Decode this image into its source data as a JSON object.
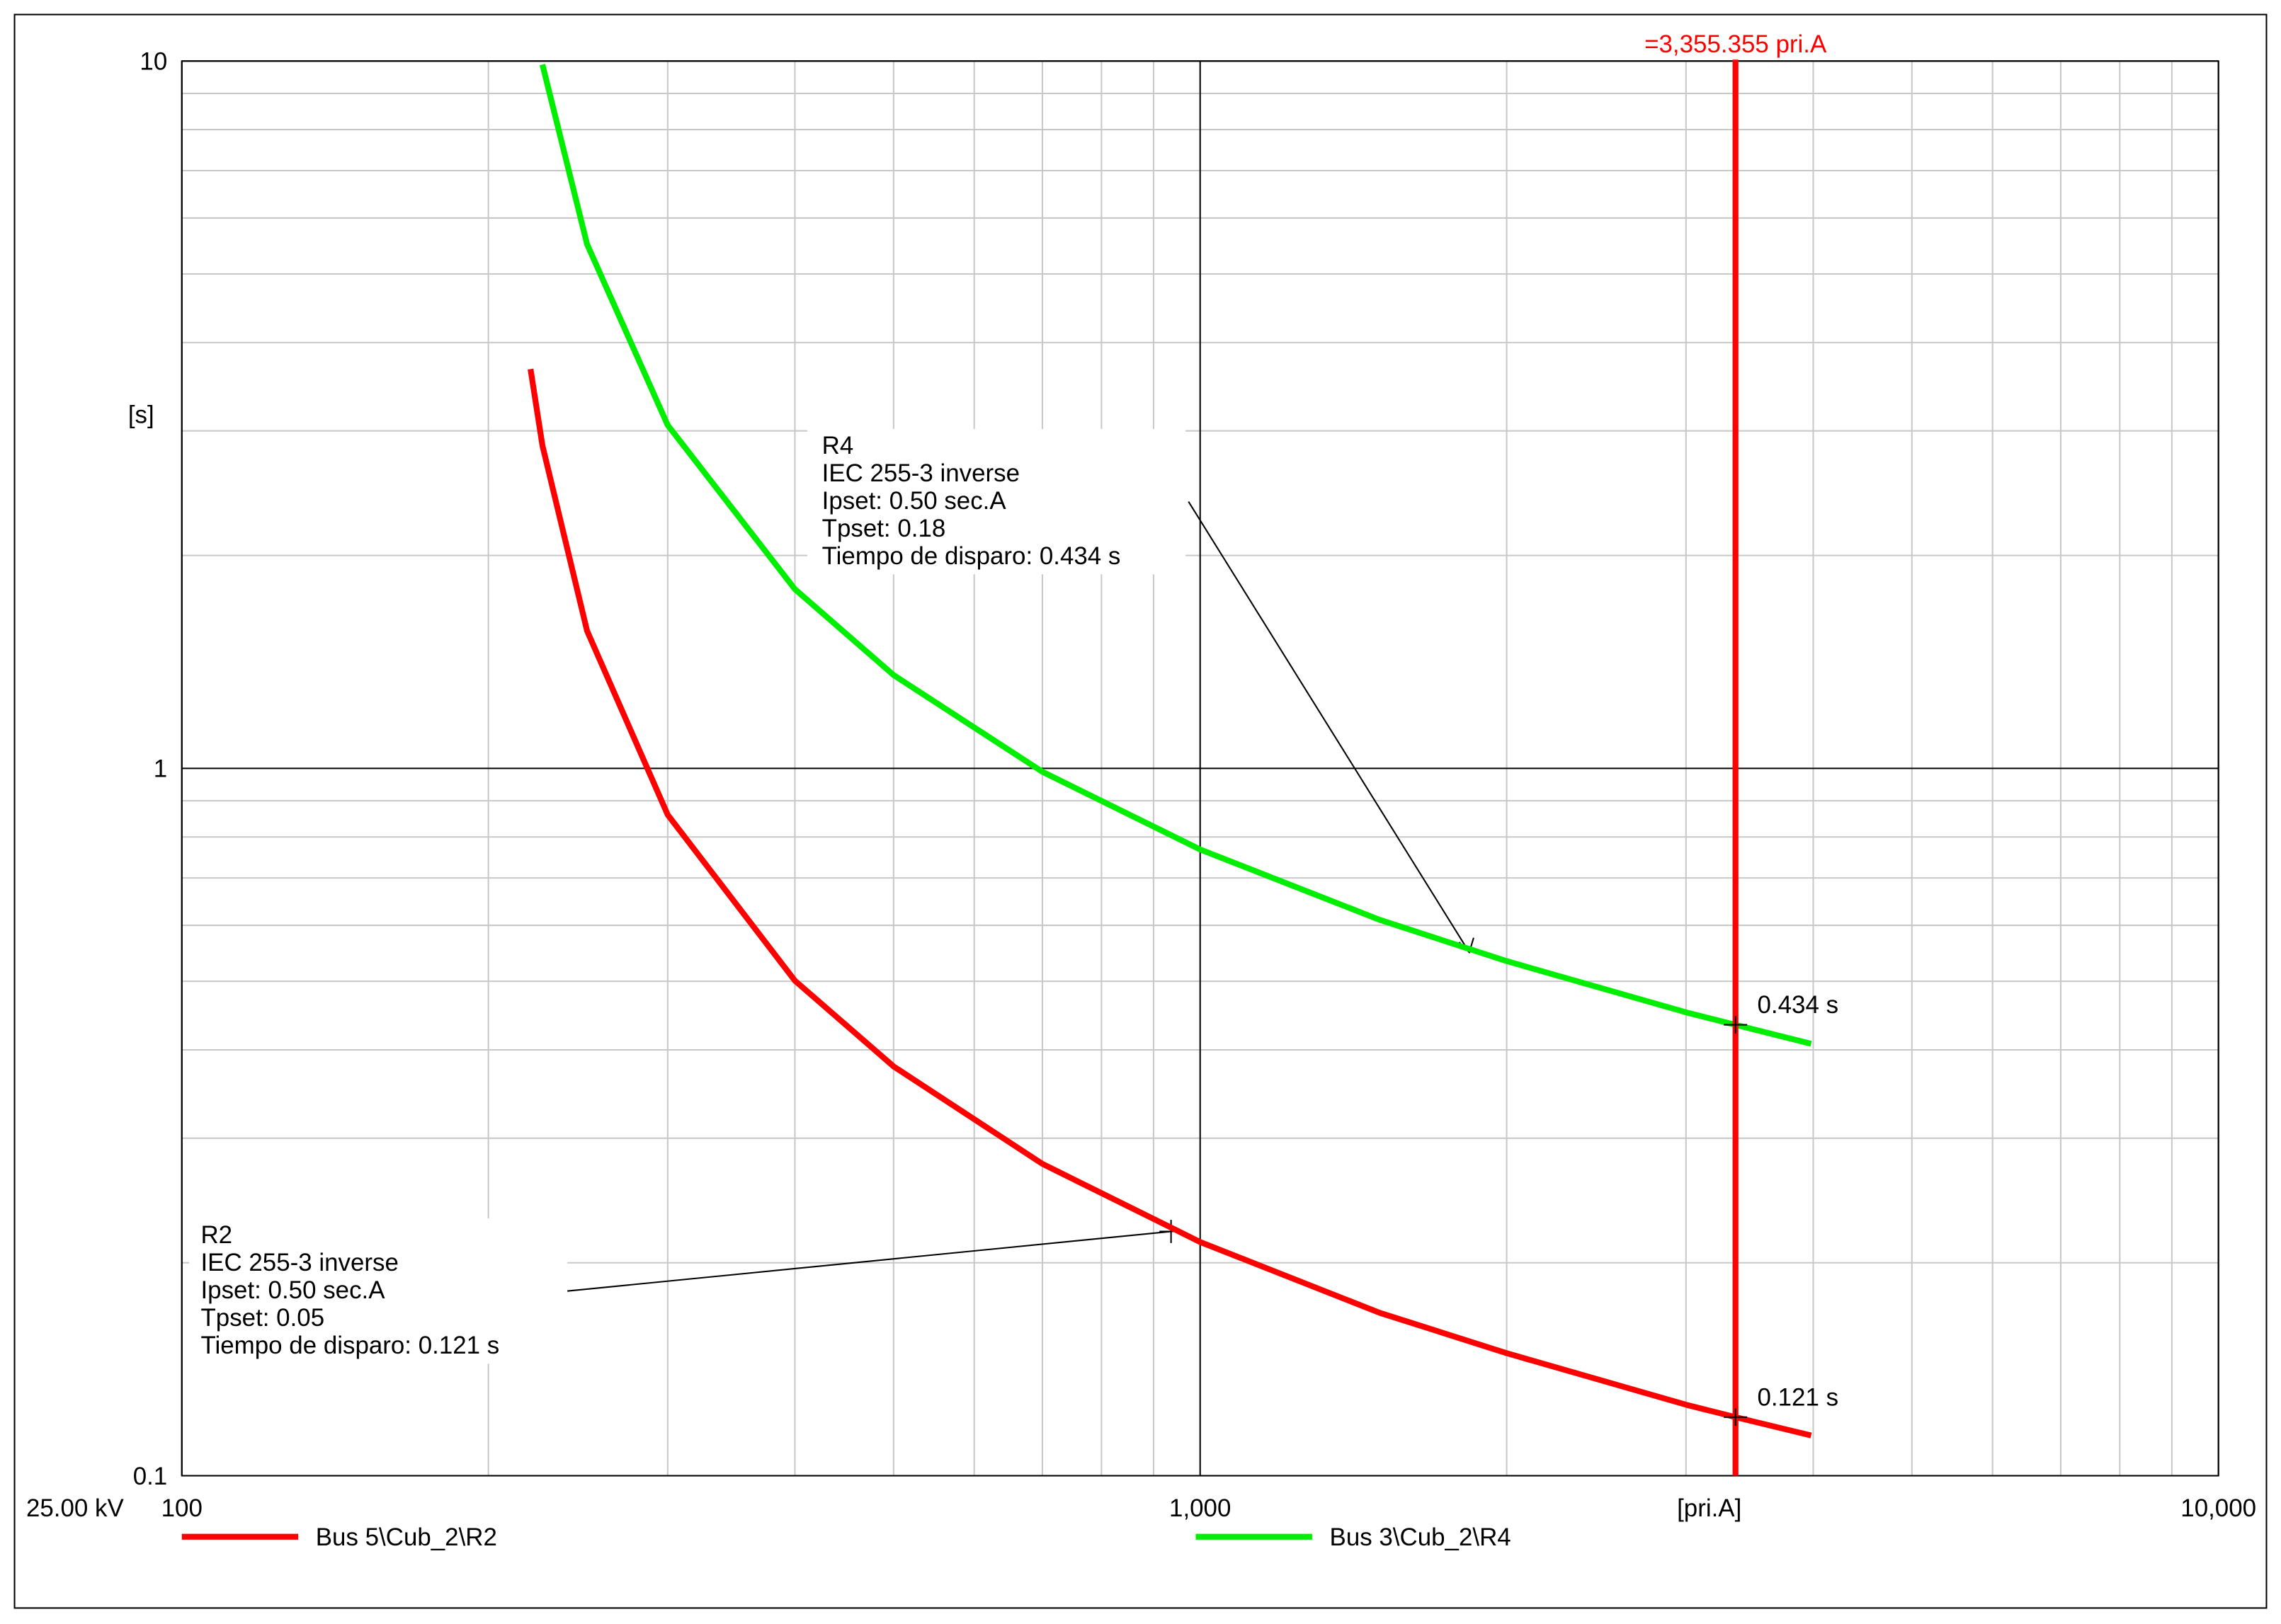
{
  "chart_data": {
    "type": "line",
    "xscale": "log",
    "yscale": "log",
    "grid": true,
    "xlim": [
      100,
      10000
    ],
    "ylim": [
      0.1,
      10
    ],
    "xticks": [
      100,
      {
        "value": 1000,
        "label": "1,000"
      },
      {
        "value": 10000,
        "label": "10,000"
      }
    ],
    "yticks": [
      0.1,
      1,
      10
    ],
    "xminorticks": [
      200,
      300,
      400,
      500,
      600,
      700,
      800,
      900,
      2000,
      3000,
      4000,
      5000,
      6000,
      7000,
      8000,
      9000
    ],
    "yminorticks": [
      0.2,
      0.3,
      0.4,
      0.5,
      0.6,
      0.7,
      0.8,
      0.9,
      2,
      3,
      4,
      5,
      6,
      7,
      8,
      9
    ],
    "xlabel": "[pri.A]",
    "ylabel": "[s]",
    "voltage": "25.00 kV",
    "x": [
      220,
      226,
      250,
      300,
      400,
      500,
      700,
      1000,
      1500,
      2000,
      3000,
      3355.355,
      3981
    ],
    "series": [
      {
        "name": "Bus 5\\Cub_2\\R2",
        "color": "#ff0000",
        "values": [
          3.669,
          2.86,
          1.565,
          0.86,
          0.501,
          0.379,
          0.276,
          0.214,
          0.17,
          0.149,
          0.126,
          0.121,
          0.114
        ]
      },
      {
        "name": "Bus 3\\Cub_2\\R4",
        "color": "#00ee00",
        "values": [
          null,
          9.886,
          5.509,
          3.057,
          1.792,
          1.355,
          0.989,
          0.768,
          0.611,
          0.534,
          0.452,
          0.434,
          0.408
        ]
      }
    ],
    "vline": {
      "value": 3355.355,
      "label": "=3,355.355 pri.A",
      "color": "#ff0000"
    },
    "points": [
      {
        "x": 3355.355,
        "y": 0.434,
        "label": "0.434 s"
      },
      {
        "x": 3355.355,
        "y": 0.121,
        "label": "0.121 s"
      }
    ],
    "annotations": [
      {
        "lines": [
          "R4",
          "IEC 255-3 inverse",
          "Ipset: 0.50 sec.A",
          "Tpset: 0.18",
          "Tiempo de disparo: 0.434 s"
        ]
      },
      {
        "lines": [
          "R2",
          "IEC 255-3 inverse",
          "Ipset: 0.50 sec.A",
          "Tpset: 0.05",
          "Tiempo de disparo: 0.121 s"
        ]
      }
    ]
  }
}
